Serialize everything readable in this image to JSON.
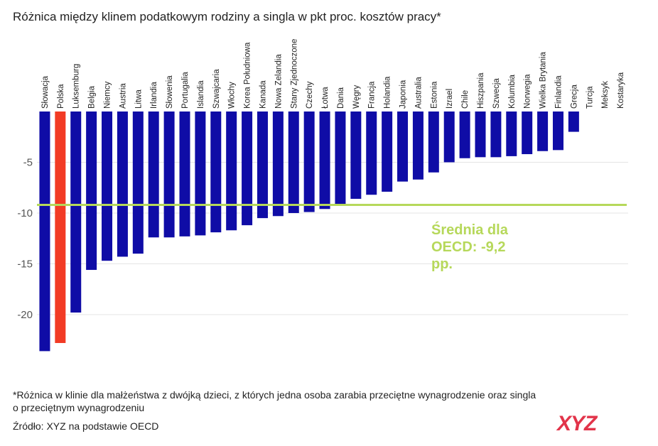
{
  "chart_data": {
    "type": "bar",
    "title": "Różnica między klinem podatkowym rodziny a singla w pkt proc. kosztów pracy*",
    "categories": [
      "Słowacja",
      "Polska",
      "Luksemburg",
      "Belgia",
      "Niemcy",
      "Austria",
      "Litwa",
      "Irlandia",
      "Słowenia",
      "Portugalia",
      "Islandia",
      "Szwajcaria",
      "Włochy",
      "Korea Południowa",
      "Kanada",
      "Nowa Zelandia",
      "Stany Zjednoczone",
      "Czechy",
      "Łotwa",
      "Dania",
      "Węgry",
      "Francja",
      "Holandia",
      "Japonia",
      "Australia",
      "Estonia",
      "Izrael",
      "Chile",
      "Hiszpania",
      "Szwecja",
      "Kolumbia",
      "Norwegia",
      "Wielka Brytania",
      "Finlandia",
      "Grecja",
      "Turcja",
      "Meksyk",
      "Kostaryka"
    ],
    "values": [
      -23.6,
      -22.8,
      -19.8,
      -15.6,
      -14.7,
      -14.3,
      -14.0,
      -12.4,
      -12.4,
      -12.3,
      -12.2,
      -11.9,
      -11.7,
      -11.2,
      -10.5,
      -10.3,
      -10.0,
      -9.9,
      -9.6,
      -9.3,
      -8.6,
      -8.2,
      -7.9,
      -6.9,
      -6.7,
      -6.0,
      -5.0,
      -4.6,
      -4.5,
      -4.5,
      -4.4,
      -4.2,
      -3.9,
      -3.8,
      -2.0,
      0,
      0,
      0
    ],
    "color": "#0f0ca6",
    "highlight": {
      "category_index": 1,
      "color": "#f23b25"
    },
    "ylim": [
      -24.2,
      0
    ],
    "yticks": [
      -5,
      -10,
      -15,
      -20
    ],
    "grid": true,
    "reference_line": {
      "value": -9.2,
      "color": "#b6d85a",
      "label": "Średnia dla OECD: -9,2 pp."
    },
    "footnote": "*Różnica w klinie dla małżeństwa z dwójką dzieci, z których jedna osoba zarabia przeciętne wynagrodzenie oraz singla o przeciętnym wynagrodzeniu",
    "source": "Źródło: XYZ na podstawie OECD",
    "logo": "XYZ"
  }
}
